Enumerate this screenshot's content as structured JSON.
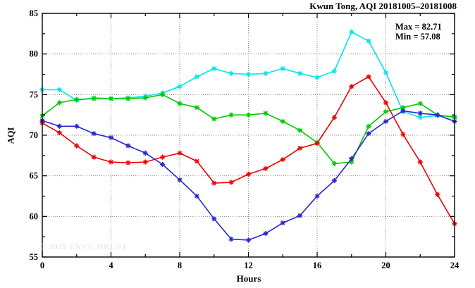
{
  "header": {
    "title": "Kwun Tong, AQI 20181005–20181008"
  },
  "annotation": {
    "max": "Max = 82.71",
    "min": "Min = 57.08"
  },
  "axes": {
    "y_label": "AQI",
    "x_label": "Hours"
  },
  "watermark": "© 2025 ENVF, HKUST",
  "chart_data": {
    "type": "line",
    "title": "Kwun Tong, AQI 20181005–20181008",
    "xlabel": "Hours",
    "ylabel": "AQI",
    "xlim": [
      0,
      24
    ],
    "ylim": [
      55,
      85
    ],
    "xticks": [
      0,
      4,
      8,
      12,
      16,
      20,
      24
    ],
    "yticks": [
      55,
      60,
      65,
      70,
      75,
      80,
      85
    ],
    "x_minor_step": 2,
    "y_minor_step": 2.5,
    "grid": true,
    "legend": "none",
    "stat_max": 82.71,
    "stat_min": 57.08,
    "x": [
      0,
      1,
      2,
      3,
      4,
      5,
      6,
      7,
      8,
      9,
      10,
      11,
      12,
      13,
      14,
      15,
      16,
      17,
      18,
      19,
      20,
      21,
      22,
      23,
      24
    ],
    "series": [
      {
        "name": "series-cyan",
        "color": "#00e8e8",
        "values": [
          75.6,
          75.6,
          74.3,
          74.6,
          74.5,
          74.6,
          74.8,
          75.2,
          76.0,
          77.2,
          78.2,
          77.6,
          77.5,
          77.6,
          78.2,
          77.6,
          77.1,
          77.9,
          82.71,
          81.6,
          77.7,
          72.9,
          72.2,
          72.4,
          72.3
        ]
      },
      {
        "name": "series-green",
        "color": "#00cc00",
        "values": [
          72.4,
          74.0,
          74.4,
          74.5,
          74.5,
          74.5,
          74.6,
          75.0,
          73.9,
          73.4,
          72.0,
          72.5,
          72.5,
          72.7,
          71.7,
          70.6,
          69.1,
          66.5,
          66.7,
          71.1,
          72.9,
          73.4,
          73.9,
          72.5,
          72.2
        ]
      },
      {
        "name": "series-red",
        "color": "#ee0000",
        "values": [
          71.5,
          70.3,
          68.7,
          67.3,
          66.7,
          66.6,
          66.7,
          67.3,
          67.8,
          66.8,
          64.1,
          64.2,
          65.2,
          65.9,
          67.0,
          68.4,
          69.0,
          72.2,
          76.0,
          77.2,
          74.0,
          70.1,
          66.7,
          62.7,
          59.1
        ]
      },
      {
        "name": "series-blue",
        "color": "#2727cc",
        "values": [
          71.8,
          71.1,
          71.1,
          70.2,
          69.7,
          68.7,
          67.8,
          66.4,
          64.5,
          62.5,
          59.7,
          57.2,
          57.08,
          57.9,
          59.2,
          60.1,
          62.5,
          64.4,
          67.1,
          70.2,
          71.7,
          73.0,
          72.7,
          72.5,
          71.7
        ]
      }
    ]
  }
}
